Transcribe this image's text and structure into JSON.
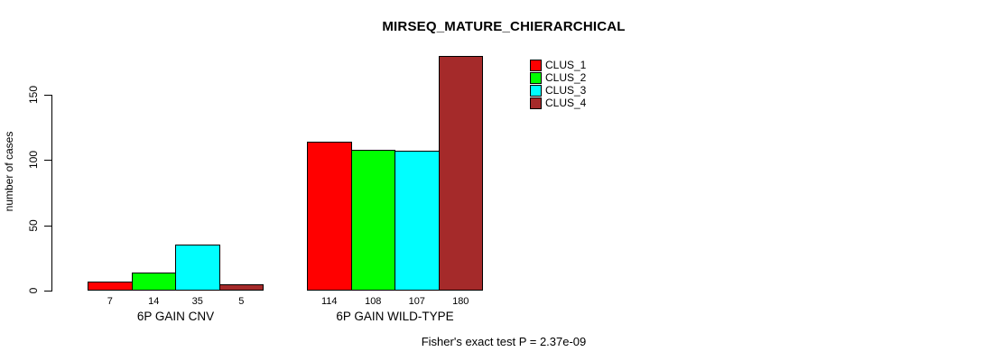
{
  "chart_data": {
    "type": "bar",
    "title": "MIRSEQ_MATURE_CHIERARCHICAL",
    "ylabel": "number of cases",
    "categories": [
      "6P GAIN CNV",
      "6P GAIN WILD-TYPE"
    ],
    "series": [
      {
        "name": "CLUS_1",
        "color": "#FF0000",
        "values": [
          7,
          114
        ]
      },
      {
        "name": "CLUS_2",
        "color": "#00FF00",
        "values": [
          14,
          108
        ]
      },
      {
        "name": "CLUS_3",
        "color": "#00FFFF",
        "values": [
          35,
          107
        ]
      },
      {
        "name": "CLUS_4",
        "color": "#A52A2A",
        "values": [
          5,
          180
        ]
      }
    ],
    "yticks": [
      0,
      50,
      100,
      150
    ],
    "ylim": [
      0,
      183
    ],
    "bar_value_labels_shown": true,
    "legend_position": "top-right",
    "grid": false,
    "annotation": "Fisher's exact test P = 2.37e-09"
  }
}
